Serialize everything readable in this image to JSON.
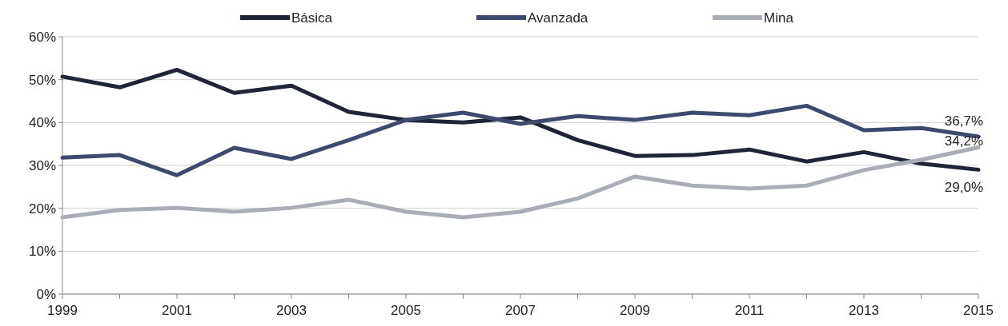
{
  "chart_data": {
    "type": "line",
    "x": [
      1999,
      2000,
      2001,
      2002,
      2003,
      2004,
      2005,
      2006,
      2007,
      2008,
      2009,
      2010,
      2011,
      2012,
      2013,
      2014,
      2015
    ],
    "series": [
      {
        "name": "Básica",
        "color": "#1f2536",
        "values": [
          50.7,
          48.2,
          52.3,
          46.9,
          48.6,
          42.5,
          40.6,
          40.0,
          41.2,
          35.9,
          32.2,
          32.4,
          33.7,
          30.9,
          33.1,
          30.4,
          29.0
        ],
        "value_labels": [
          null,
          null,
          null,
          null,
          null,
          null,
          null,
          null,
          null,
          null,
          null,
          null,
          null,
          null,
          null,
          null,
          "29,0%"
        ]
      },
      {
        "name": "Avanzada",
        "color": "#3d4a6e",
        "values": [
          31.8,
          32.4,
          27.7,
          34.1,
          31.5,
          35.9,
          40.6,
          42.3,
          39.7,
          41.5,
          40.6,
          42.3,
          41.7,
          43.9,
          38.2,
          38.7,
          36.7
        ],
        "value_labels": [
          null,
          null,
          null,
          null,
          null,
          null,
          null,
          null,
          null,
          null,
          null,
          null,
          null,
          null,
          null,
          null,
          "36,7%"
        ]
      },
      {
        "name": "Mina",
        "color": "#a9adb8",
        "values": [
          17.9,
          19.6,
          20.1,
          19.2,
          20.1,
          22.0,
          19.2,
          17.9,
          19.2,
          22.3,
          27.4,
          25.3,
          24.6,
          25.3,
          28.9,
          31.3,
          34.2
        ],
        "value_labels": [
          null,
          null,
          null,
          null,
          null,
          null,
          null,
          null,
          null,
          null,
          null,
          null,
          null,
          null,
          null,
          null,
          "34,2%"
        ]
      }
    ],
    "xlim": [
      1999,
      2015
    ],
    "xticks": [
      1999,
      {
        "value": 2000,
        "label": null
      },
      2001,
      {
        "value": 2002,
        "label": null
      },
      2003,
      {
        "value": 2004,
        "label": null
      },
      2005,
      {
        "value": 2006,
        "label": null
      },
      2007,
      {
        "value": 2008,
        "label": null
      },
      2009,
      {
        "value": 2010,
        "label": null
      },
      2011,
      {
        "value": 2012,
        "label": null
      },
      2013,
      {
        "value": 2014,
        "label": null
      },
      2015
    ],
    "ylim": [
      0,
      60
    ],
    "yticks": [
      {
        "value": 0,
        "label": "0%"
      },
      {
        "value": 10,
        "label": "10%"
      },
      {
        "value": 20,
        "label": "20%"
      },
      {
        "value": 30,
        "label": "30%"
      },
      {
        "value": 40,
        "label": "40%"
      },
      {
        "value": 50,
        "label": "50%"
      },
      {
        "value": 60,
        "label": "60%"
      }
    ],
    "grid": "y",
    "legend": "top",
    "marker": "none",
    "line_style": "solid"
  }
}
